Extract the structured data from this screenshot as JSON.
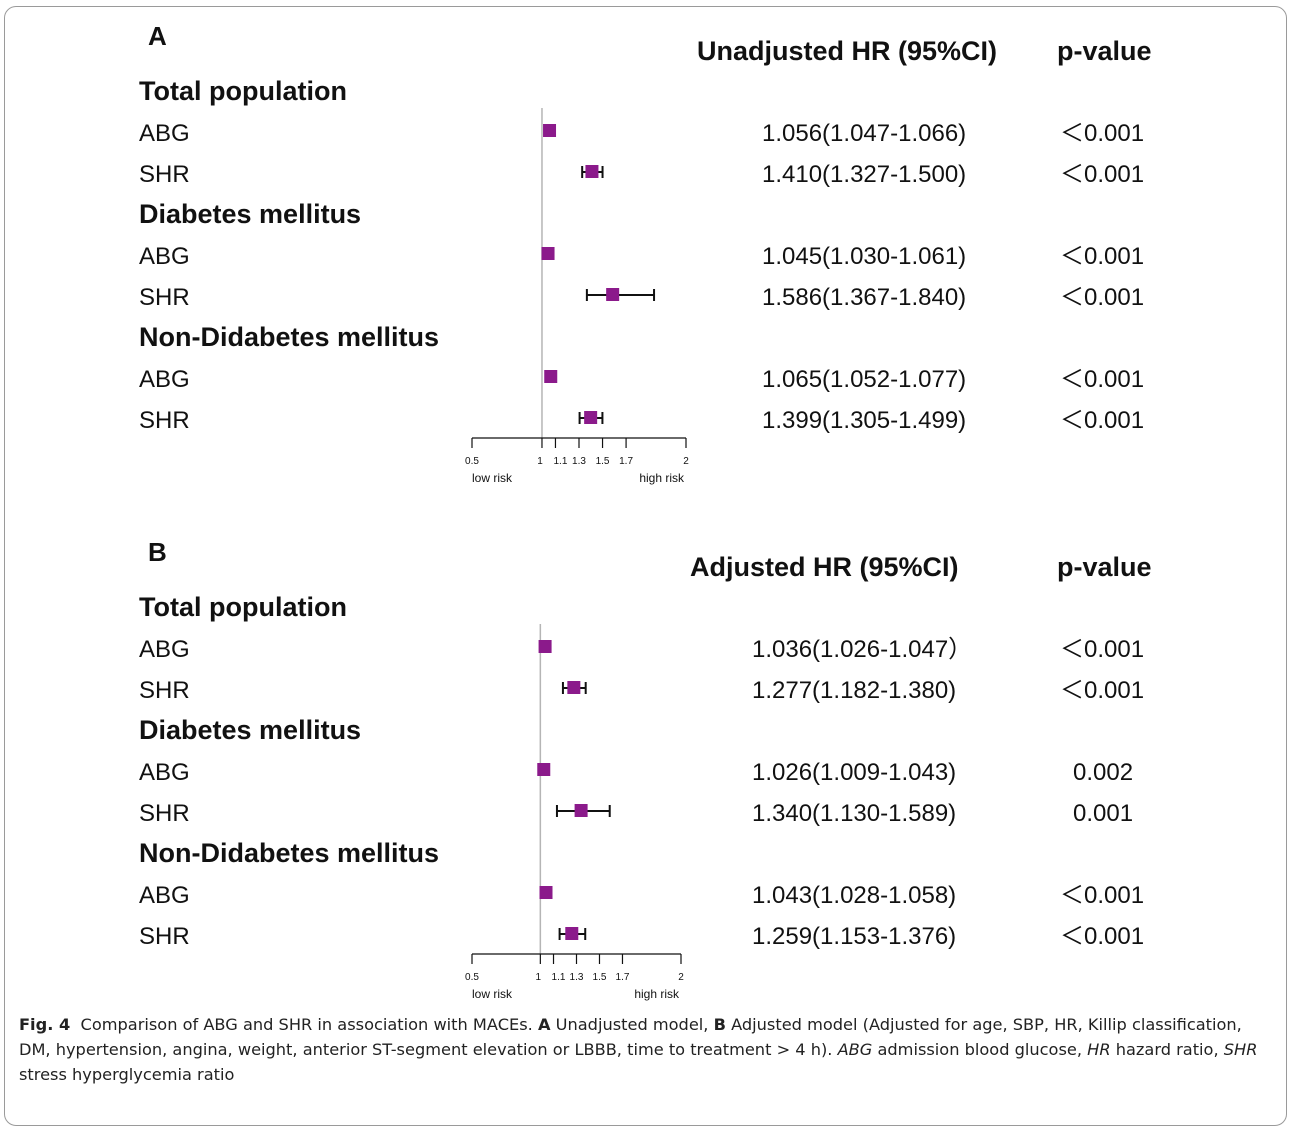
{
  "figure": {
    "caption": {
      "fig_label": "Fig. 4",
      "part1": "Comparison of ABG and SHR in association with MACEs.",
      "label_a": "A",
      "part2": "Unadjusted model,",
      "label_b": "B",
      "part3": "Adjusted model (Adjusted for age, SBP, HR, Killip classification, DM, hypertension, angina, weight, anterior ST-segment elevation or LBBB, time to treatment > 4 h).",
      "abbr1": "ABG",
      "def1": "admission blood glucose,",
      "abbr2": "HR",
      "def2": "hazard ratio,",
      "abbr3": "SHR",
      "def3": "stress hyperglycemia ratio"
    }
  },
  "chart_data": [
    {
      "type": "forest",
      "panel_label": "A",
      "estimate_header": "Unadjusted HR (95%CI)",
      "p_header": "p-value",
      "axis": {
        "ticks": [
          0.5,
          1,
          1.1,
          1.3,
          1.5,
          1.7,
          2
        ],
        "tick_labels": [
          "0.5",
          "1",
          "1.1",
          "1.3",
          "1.5",
          "1.7",
          "2"
        ],
        "xlim": [
          0.5,
          2
        ],
        "reference_line": 1,
        "low_label": "low risk",
        "high_label": "high risk"
      },
      "groups": [
        {
          "name": "Total population",
          "rows": [
            {
              "label": "ABG",
              "hr": 1.056,
              "lo": 1.047,
              "hi": 1.066,
              "text": "1.056(1.047-1.066)",
              "p": "<0.001"
            },
            {
              "label": "SHR",
              "hr": 1.41,
              "lo": 1.327,
              "hi": 1.5,
              "text": "1.410(1.327-1.500)",
              "p": "<0.001"
            }
          ]
        },
        {
          "name": "Diabetes mellitus",
          "rows": [
            {
              "label": "ABG",
              "hr": 1.045,
              "lo": 1.03,
              "hi": 1.061,
              "text": "1.045(1.030-1.061)",
              "p": "<0.001"
            },
            {
              "label": "SHR",
              "hr": 1.586,
              "lo": 1.367,
              "hi": 1.84,
              "text": "1.586(1.367-1.840)",
              "p": "<0.001"
            }
          ]
        },
        {
          "name": "Non-Didabetes mellitus",
          "rows": [
            {
              "label": "ABG",
              "hr": 1.065,
              "lo": 1.052,
              "hi": 1.077,
              "text": "1.065(1.052-1.077)",
              "p": "<0.001"
            },
            {
              "label": "SHR",
              "hr": 1.399,
              "lo": 1.305,
              "hi": 1.499,
              "text": "1.399(1.305-1.499)",
              "p": "<0.001"
            }
          ]
        }
      ],
      "marker_color": "#8b1a8b"
    },
    {
      "type": "forest",
      "panel_label": "B",
      "estimate_header": "Adjusted HR (95%CI)",
      "p_header": "p-value",
      "axis": {
        "ticks": [
          0.5,
          1,
          1.1,
          1.3,
          1.5,
          1.7,
          2
        ],
        "tick_labels": [
          "0.5",
          "1",
          "1.1",
          "1.3",
          "1.5",
          "1.7",
          "2"
        ],
        "xlim": [
          0.5,
          2
        ],
        "reference_line": 1,
        "low_label": "low risk",
        "high_label": "high risk"
      },
      "groups": [
        {
          "name": "Total population",
          "rows": [
            {
              "label": "ABG",
              "hr": 1.036,
              "lo": 1.026,
              "hi": 1.047,
              "text": "1.036(1.026-1.047）",
              "p": "<0.001"
            },
            {
              "label": "SHR",
              "hr": 1.277,
              "lo": 1.182,
              "hi": 1.38,
              "text": "1.277(1.182-1.380)",
              "p": "<0.001"
            }
          ]
        },
        {
          "name": "Diabetes mellitus",
          "rows": [
            {
              "label": "ABG",
              "hr": 1.026,
              "lo": 1.009,
              "hi": 1.043,
              "text": "1.026(1.009-1.043)",
              "p": "0.002"
            },
            {
              "label": "SHR",
              "hr": 1.34,
              "lo": 1.13,
              "hi": 1.589,
              "text": "1.340(1.130-1.589)",
              "p": "0.001"
            }
          ]
        },
        {
          "name": "Non-Didabetes mellitus",
          "rows": [
            {
              "label": "ABG",
              "hr": 1.043,
              "lo": 1.028,
              "hi": 1.058,
              "text": "1.043(1.028-1.058)",
              "p": "<0.001"
            },
            {
              "label": "SHR",
              "hr": 1.259,
              "lo": 1.153,
              "hi": 1.376,
              "text": "1.259(1.153-1.376)",
              "p": "<0.001"
            }
          ]
        }
      ],
      "marker_color": "#8b1a8b"
    }
  ]
}
